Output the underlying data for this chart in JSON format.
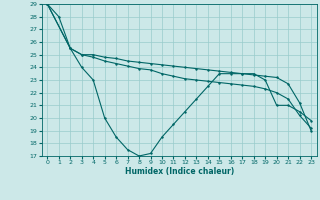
{
  "xlabel": "Humidex (Indice chaleur)",
  "bg_color": "#cce8e8",
  "grid_color": "#99cccc",
  "line_color": "#006666",
  "xlim": [
    -0.5,
    23.5
  ],
  "ylim": [
    17,
    29
  ],
  "yticks": [
    17,
    18,
    19,
    20,
    21,
    22,
    23,
    24,
    25,
    26,
    27,
    28,
    29
  ],
  "xticks": [
    0,
    1,
    2,
    3,
    4,
    5,
    6,
    7,
    8,
    9,
    10,
    11,
    12,
    13,
    14,
    15,
    16,
    17,
    18,
    19,
    20,
    21,
    22,
    23
  ],
  "line1_x": [
    0,
    1,
    2,
    3,
    4,
    5,
    6,
    7,
    8,
    9,
    10,
    11,
    12,
    13,
    14,
    15,
    16,
    17,
    18,
    19,
    20,
    21,
    22,
    23
  ],
  "line1_y": [
    29,
    28,
    25.5,
    25.0,
    25.0,
    24.8,
    24.7,
    24.5,
    24.4,
    24.3,
    24.2,
    24.1,
    24.0,
    23.9,
    23.8,
    23.7,
    23.6,
    23.5,
    23.4,
    23.3,
    23.2,
    22.7,
    21.2,
    19.0
  ],
  "line2_x": [
    0,
    2,
    3,
    4,
    5,
    6,
    7,
    8,
    9,
    10,
    11,
    12,
    13,
    14,
    15,
    16,
    17,
    18,
    19,
    20,
    21,
    22,
    23
  ],
  "line2_y": [
    29,
    25.5,
    24.0,
    23.0,
    20.0,
    18.5,
    17.5,
    17.0,
    17.2,
    18.5,
    19.5,
    20.5,
    21.5,
    22.5,
    23.5,
    23.5,
    23.5,
    23.5,
    23.0,
    21.0,
    21.0,
    20.5,
    19.8
  ],
  "line3_x": [
    0,
    2,
    3,
    4,
    5,
    6,
    7,
    8,
    9,
    10,
    11,
    12,
    13,
    14,
    15,
    16,
    17,
    18,
    19,
    20,
    21,
    22,
    23
  ],
  "line3_y": [
    29,
    25.5,
    25.0,
    24.8,
    24.5,
    24.3,
    24.1,
    23.9,
    23.8,
    23.5,
    23.3,
    23.1,
    23.0,
    22.9,
    22.8,
    22.7,
    22.6,
    22.5,
    22.3,
    22.0,
    21.5,
    20.2,
    19.2
  ]
}
